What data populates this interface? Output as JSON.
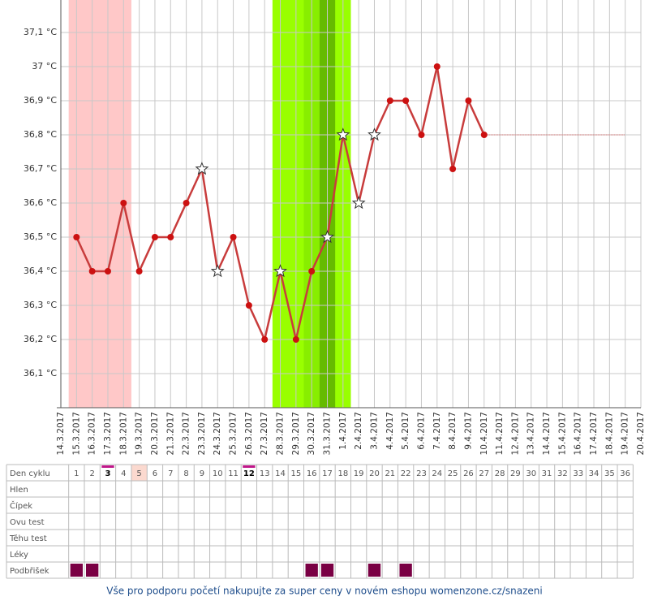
{
  "chart_data": {
    "type": "line",
    "x": [
      "14.3.2017",
      "15.3.2017",
      "16.3.2017",
      "17.3.2017",
      "18.3.2017",
      "19.3.2017",
      "20.3.2017",
      "21.3.2017",
      "22.3.2017",
      "23.3.2017",
      "24.3.2017",
      "25.3.2017",
      "26.3.2017",
      "27.3.2017",
      "28.3.2017",
      "29.3.2017",
      "30.3.2017",
      "31.3.2017",
      "1.4.2017",
      "2.4.2017",
      "3.4.2017",
      "4.4.2017",
      "5.4.2017",
      "6.4.2017",
      "7.4.2017",
      "8.4.2017",
      "9.4.2017",
      "10.4.2017",
      "11.4.2017",
      "12.4.2017",
      "13.4.2017",
      "14.4.2017",
      "15.4.2017",
      "16.4.2017",
      "17.4.2017",
      "18.4.2017",
      "19.4.2017",
      "20.4.2017"
    ],
    "series": [
      {
        "color": "#c83c3c",
        "values": [
          null,
          36.5,
          36.4,
          36.4,
          36.6,
          36.4,
          36.5,
          36.5,
          36.6,
          36.7,
          36.4,
          36.5,
          36.3,
          36.2,
          36.4,
          36.2,
          36.4,
          36.5,
          36.8,
          36.6,
          36.8,
          36.9,
          36.9,
          36.8,
          37.0,
          36.7,
          36.9,
          36.8,
          null,
          null,
          null,
          null,
          null,
          null,
          null,
          null,
          null,
          null
        ],
        "point_style": [
          null,
          "dot",
          "dot",
          "dot",
          "dot",
          "dot",
          "dot",
          "dot",
          "dot",
          "star",
          "star",
          "dot",
          "dot",
          "dot",
          "star",
          "dot",
          "dot",
          "star",
          "star",
          "star",
          "star",
          "dot",
          "dot",
          "dot",
          "dot",
          "dot",
          "dot",
          "dot",
          null,
          null,
          null,
          null,
          null,
          null,
          null,
          null,
          null,
          null
        ]
      }
    ],
    "ylim": [
      36.0,
      37.2
    ],
    "yticks": [
      {
        "value": 36.1,
        "label": "36,1 °C"
      },
      {
        "value": 36.2,
        "label": "36,2 °C"
      },
      {
        "value": 36.3,
        "label": "36,3 °C"
      },
      {
        "value": 36.4,
        "label": "36,4 °C"
      },
      {
        "value": 36.5,
        "label": "36,5 °C"
      },
      {
        "value": 36.6,
        "label": "36,6 °C"
      },
      {
        "value": 36.7,
        "label": "36,7 °C"
      },
      {
        "value": 36.8,
        "label": "36,8 °C"
      },
      {
        "value": 36.9,
        "label": "36,9 °C"
      },
      {
        "value": 37.0,
        "label": "37 °C"
      },
      {
        "value": 37.1,
        "label": "37,1 °C"
      }
    ],
    "grid": true,
    "bands": [
      {
        "from": "15.3.2017",
        "to": "18.3.2017",
        "color": "#ffc8c8"
      },
      {
        "from": "28.3.2017",
        "to": "1.4.2017",
        "color": "#99ff00"
      },
      {
        "from": "30.3.2017",
        "to": "30.3.2017",
        "color": "#88ee00"
      },
      {
        "from": "31.3.2017",
        "to": "31.3.2017",
        "color": "#66bb00"
      }
    ],
    "reference_line": {
      "value": 36.8,
      "from": "10.4.2017",
      "to": "19.4.2017",
      "color": "#e09090"
    }
  },
  "table": {
    "cycle_days": [
      1,
      2,
      3,
      4,
      5,
      6,
      7,
      8,
      9,
      10,
      11,
      12,
      13,
      14,
      15,
      16,
      17,
      18,
      19,
      20,
      21,
      22,
      23,
      24,
      25,
      26,
      27,
      28,
      29,
      30,
      31,
      32,
      33,
      34,
      35,
      36
    ],
    "marked_cells": [
      2,
      11
    ],
    "shaded_cells": [
      4
    ],
    "rows": [
      {
        "label": "Den cyklu"
      },
      {
        "label": "Hlen"
      },
      {
        "label": "Čípek"
      },
      {
        "label": "Ovu test"
      },
      {
        "label": "Těhu test"
      },
      {
        "label": "Léky"
      },
      {
        "label": "Podbřišek",
        "marks": [
          0,
          1,
          15,
          16,
          19,
          21
        ],
        "mark_color": "#7a0044"
      }
    ]
  },
  "footer": "Vše pro podporu početí nakupujte za super ceny v novém eshopu womenzone.cz/snazeni"
}
